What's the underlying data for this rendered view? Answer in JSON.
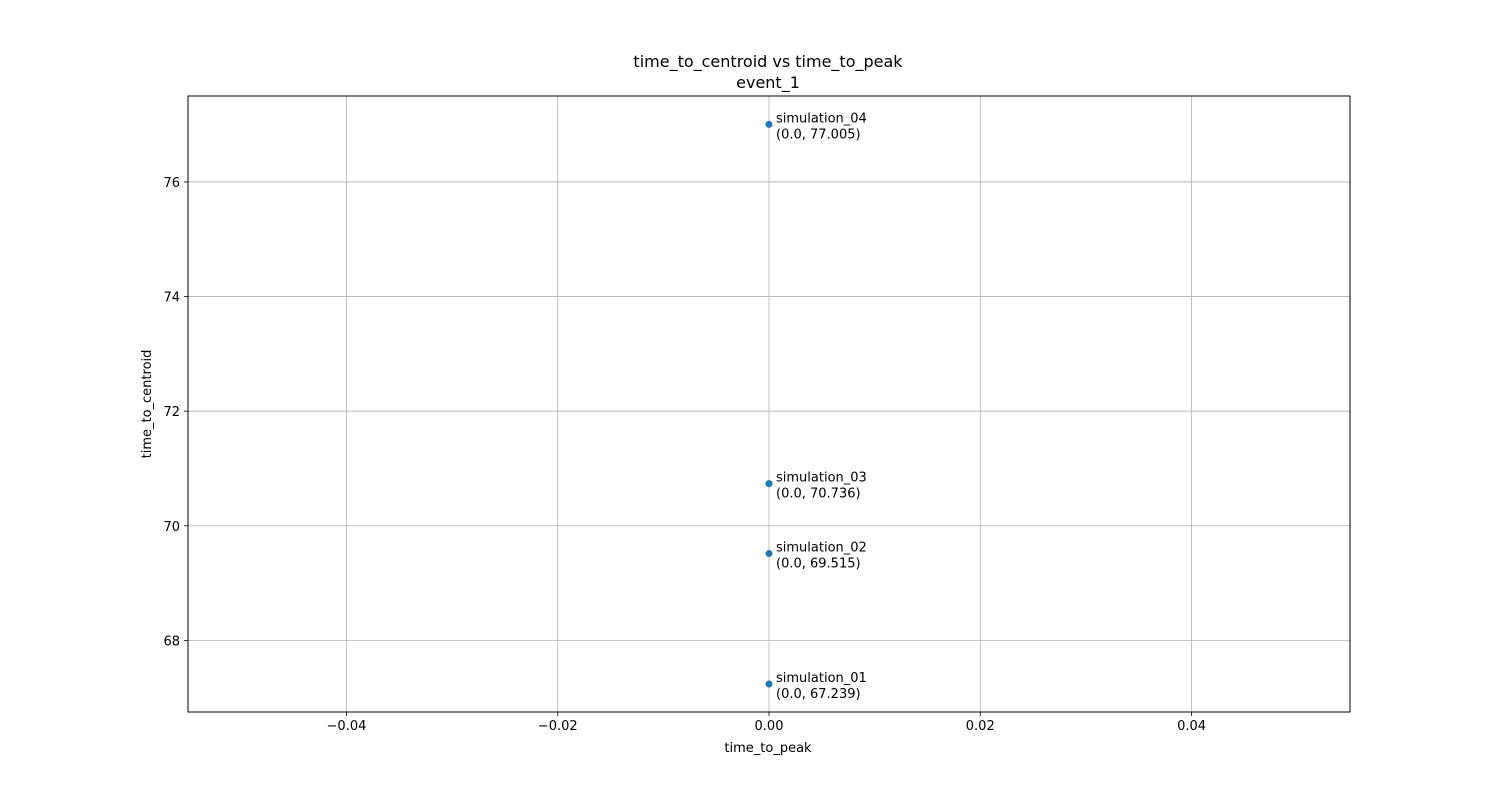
{
  "chart_data": {
    "type": "scatter",
    "title": "time_to_centroid vs time_to_peak",
    "subtitle": "event_1",
    "xlabel": "time_to_peak",
    "ylabel": "time_to_centroid",
    "xlim": [
      -0.055,
      0.055
    ],
    "ylim": [
      66.75,
      77.5
    ],
    "grid": true,
    "marker_color": "#1f77b4",
    "x_ticks": [
      {
        "value": -0.04,
        "label": "−0.04"
      },
      {
        "value": -0.02,
        "label": "−0.02"
      },
      {
        "value": 0.0,
        "label": "0.00"
      },
      {
        "value": 0.02,
        "label": "0.02"
      },
      {
        "value": 0.04,
        "label": "0.04"
      }
    ],
    "y_ticks": [
      {
        "value": 68,
        "label": "68"
      },
      {
        "value": 70,
        "label": "70"
      },
      {
        "value": 72,
        "label": "72"
      },
      {
        "value": 74,
        "label": "74"
      },
      {
        "value": 76,
        "label": "76"
      }
    ],
    "points": [
      {
        "name": "simulation_04",
        "x": 0.0,
        "y": 77.005,
        "coord_label": "(0.0, 77.005)"
      },
      {
        "name": "simulation_03",
        "x": 0.0,
        "y": 70.736,
        "coord_label": "(0.0, 70.736)"
      },
      {
        "name": "simulation_02",
        "x": 0.0,
        "y": 69.515,
        "coord_label": "(0.0, 69.515)"
      },
      {
        "name": "simulation_01",
        "x": 0.0,
        "y": 67.239,
        "coord_label": "(0.0, 67.239)"
      }
    ]
  }
}
